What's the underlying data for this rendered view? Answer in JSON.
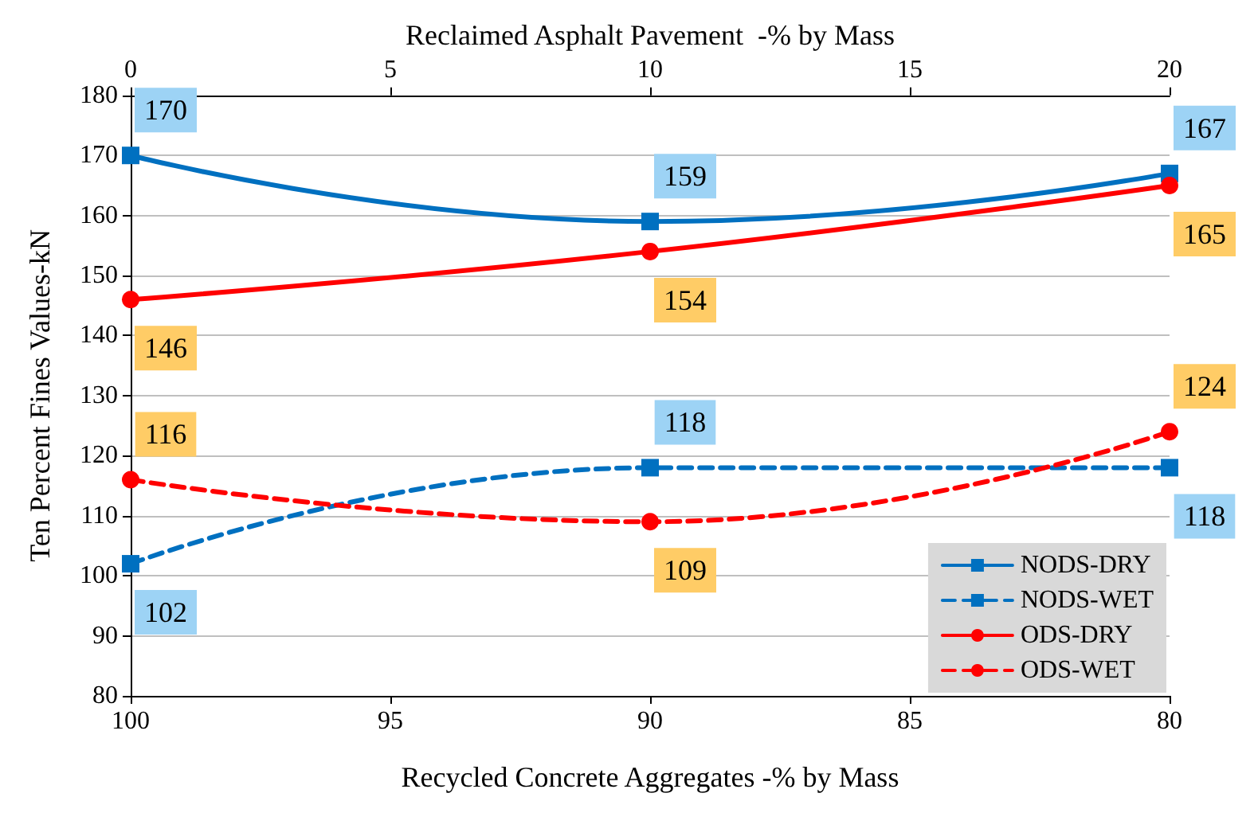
{
  "chart_data": {
    "type": "line",
    "xlabel": "Recycled Concrete Aggregates -% by Mass",
    "x2label": "Reclaimed Asphalt Pavement  -% by Mass",
    "ylabel": "Ten Percent Fines Values-kN",
    "x": [
      100,
      90,
      80
    ],
    "xlim": [
      100,
      80
    ],
    "xticks": [
      100,
      95,
      90,
      85,
      80
    ],
    "x2lim": [
      0,
      20
    ],
    "x2ticks": [
      0,
      5,
      10,
      15,
      20
    ],
    "ylim": [
      80,
      180
    ],
    "yticks": [
      80,
      90,
      100,
      110,
      120,
      130,
      140,
      150,
      160,
      170,
      180
    ],
    "series": [
      {
        "name": "NODS-DRY",
        "color": "#0070c0",
        "values": [
          170,
          159,
          167
        ],
        "marker": "square",
        "line_style": "solid"
      },
      {
        "name": "NODS-WET",
        "color": "#0070c0",
        "values": [
          102,
          118,
          118
        ],
        "marker": "square",
        "line_style": "dashed"
      },
      {
        "name": "ODS-DRY",
        "color": "#ff0000",
        "values": [
          146,
          154,
          165
        ],
        "marker": "circle",
        "line_style": "solid"
      },
      {
        "name": "ODS-WET",
        "color": "#ff0000",
        "values": [
          116,
          109,
          124
        ],
        "marker": "circle",
        "line_style": "dashed"
      }
    ],
    "data_labels": true,
    "grid": "y",
    "legend": "bottom right"
  }
}
